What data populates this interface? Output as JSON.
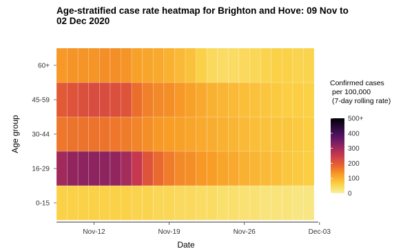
{
  "chart_data": {
    "type": "heatmap",
    "title_lines": [
      "Age-stratified case rate heatmap for Brighton and Hove: 09 Nov to",
      "02 Dec 2020"
    ],
    "xlabel": "Date",
    "ylabel": "Age group",
    "x_ticks": [
      "Nov-12",
      "Nov-19",
      "Nov-26",
      "Dec-03"
    ],
    "age_groups": [
      "0-15",
      "16-29",
      "30-44",
      "45-59",
      "60+"
    ],
    "dates": [
      "2020-11-09",
      "2020-11-10",
      "2020-11-11",
      "2020-11-12",
      "2020-11-13",
      "2020-11-14",
      "2020-11-15",
      "2020-11-16",
      "2020-11-17",
      "2020-11-18",
      "2020-11-19",
      "2020-11-20",
      "2020-11-21",
      "2020-11-22",
      "2020-11-23",
      "2020-11-24",
      "2020-11-25",
      "2020-11-26",
      "2020-11-27",
      "2020-11-28",
      "2020-11-29",
      "2020-11-30",
      "2020-12-01",
      "2020-12-02"
    ],
    "values": {
      "0-15": [
        60,
        60,
        60,
        60,
        60,
        60,
        60,
        55,
        55,
        50,
        50,
        45,
        45,
        40,
        40,
        35,
        35,
        30,
        30,
        25,
        25,
        25,
        20,
        20
      ],
      "16-29": [
        300,
        315,
        320,
        320,
        320,
        315,
        295,
        255,
        210,
        180,
        160,
        145,
        140,
        130,
        125,
        115,
        110,
        100,
        95,
        90,
        85,
        75,
        70,
        65
      ],
      "30-44": [
        165,
        170,
        170,
        170,
        170,
        165,
        160,
        150,
        140,
        130,
        125,
        120,
        115,
        110,
        105,
        100,
        95,
        90,
        85,
        80,
        75,
        75,
        70,
        65
      ],
      "45-59": [
        200,
        210,
        215,
        220,
        220,
        215,
        210,
        175,
        155,
        145,
        140,
        130,
        120,
        110,
        100,
        95,
        90,
        85,
        80,
        75,
        70,
        65,
        65,
        60
      ],
      "60+": [
        130,
        135,
        135,
        135,
        140,
        140,
        135,
        120,
        115,
        110,
        100,
        90,
        80,
        60,
        45,
        40,
        40,
        45,
        50,
        55,
        60,
        60,
        55,
        55
      ]
    },
    "legend": {
      "title_lines": [
        "Confirmed cases",
        "per 100,000",
        "(7-day rolling rate)"
      ],
      "ticks": [
        "500+",
        "400",
        "300",
        "200",
        "100",
        "0"
      ],
      "tick_values": [
        500,
        400,
        300,
        200,
        100,
        0
      ],
      "range": [
        0,
        500
      ]
    },
    "colorscale": [
      "#f7f1a0",
      "#fbd044",
      "#f89d26",
      "#e8622f",
      "#c93a4e",
      "#94265e",
      "#5a1466",
      "#2a0b3b",
      "#000004"
    ]
  }
}
